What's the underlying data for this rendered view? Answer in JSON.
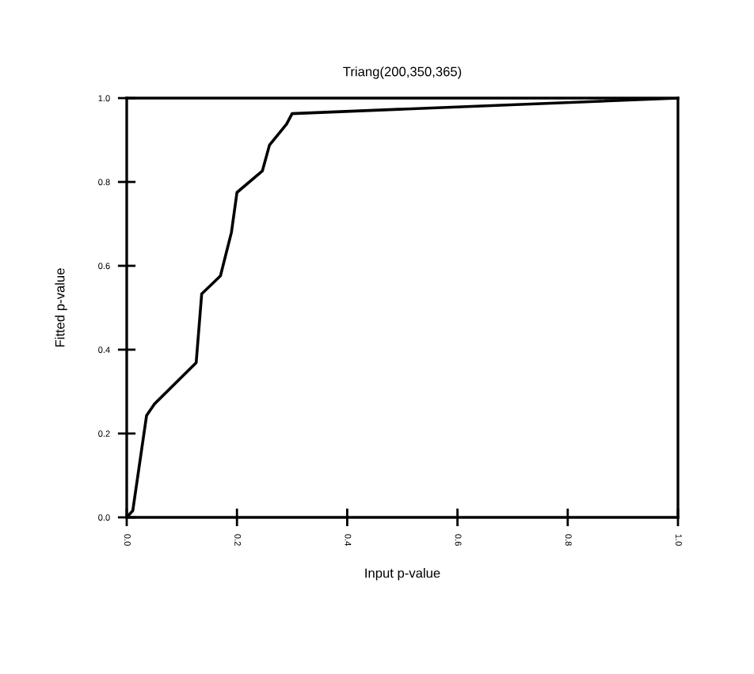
{
  "chart_data": {
    "type": "line",
    "title": "Triang(200,350,365)",
    "xlabel": "Input p-value",
    "ylabel": "Fitted p-value",
    "x": [
      0,
      0.011,
      0.036,
      0.05,
      0.126,
      0.136,
      0.17,
      0.19,
      0.2,
      0.246,
      0.259,
      0.29,
      0.3,
      1.0
    ],
    "series": [
      {
        "color": "#000000",
        "values": [
          0,
          0.016,
          0.243,
          0.27,
          0.369,
          0.533,
          0.576,
          0.68,
          0.775,
          0.826,
          0.888,
          0.938,
          0.963,
          1.0
        ]
      }
    ],
    "xlim": [
      0,
      1
    ],
    "ylim": [
      0,
      1
    ],
    "xticks": [
      {
        "value": 0,
        "label": "0.0"
      },
      {
        "value": 0.2,
        "label": "0.2"
      },
      {
        "value": 0.4,
        "label": "0.4"
      },
      {
        "value": 0.6,
        "label": "0.6"
      },
      {
        "value": 0.8,
        "label": "0.8"
      },
      {
        "value": 1.0,
        "label": "1.0"
      }
    ],
    "yticks": [
      {
        "value": 0,
        "label": "0.0"
      },
      {
        "value": 0.2,
        "label": "0.2"
      },
      {
        "value": 0.4,
        "label": "0.4"
      },
      {
        "value": 0.6,
        "label": "0.6"
      },
      {
        "value": 0.8,
        "label": "0.8"
      },
      {
        "value": 1.0,
        "label": "1.0"
      }
    ],
    "grid": false,
    "legend": false,
    "marker": "none",
    "line_style": "solid"
  }
}
